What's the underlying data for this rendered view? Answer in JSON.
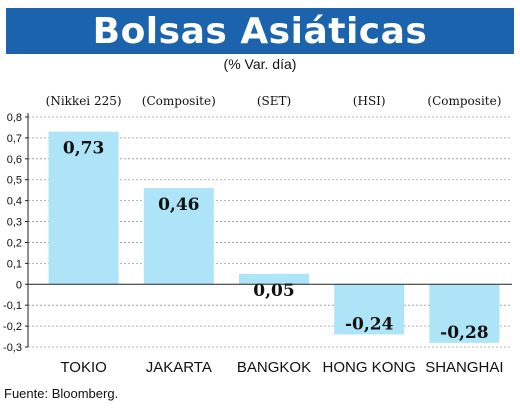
{
  "header": {
    "title": "Bolsas Asiáticas",
    "subtitle": "(% Var. día)"
  },
  "footer": {
    "source": "Fuente: Bloomberg."
  },
  "colors": {
    "banner": "#1b64ad",
    "bar": "#aee4f7",
    "grid": "#9a9a9a",
    "axis": "#222222"
  },
  "chart_data": {
    "type": "bar",
    "categories": [
      "TOKIO",
      "JAKARTA",
      "BANGKOK",
      "HONG KONG",
      "SHANGHAI"
    ],
    "indices": [
      "(Nikkei 225)",
      "(Composite)",
      "(SET)",
      "(HSI)",
      "(Composite)"
    ],
    "values": [
      0.73,
      0.46,
      0.05,
      -0.24,
      -0.28
    ],
    "value_labels": [
      "0,73",
      "0,46",
      "0,05",
      "-0,24",
      "-0,28"
    ],
    "ylim": [
      -0.3,
      0.8
    ],
    "yticks": [
      0.8,
      0.7,
      0.6,
      0.5,
      0.4,
      0.3,
      0.2,
      0.1,
      0,
      -0.1,
      -0.2,
      -0.3
    ],
    "ytick_labels": [
      "0,8",
      "0,7",
      "0,6",
      "0,5",
      "0,4",
      "0,3",
      "0,2",
      "0,1",
      "0",
      "-0,1",
      "-0,2",
      "-0,3"
    ],
    "grid": true,
    "legend": "none"
  }
}
